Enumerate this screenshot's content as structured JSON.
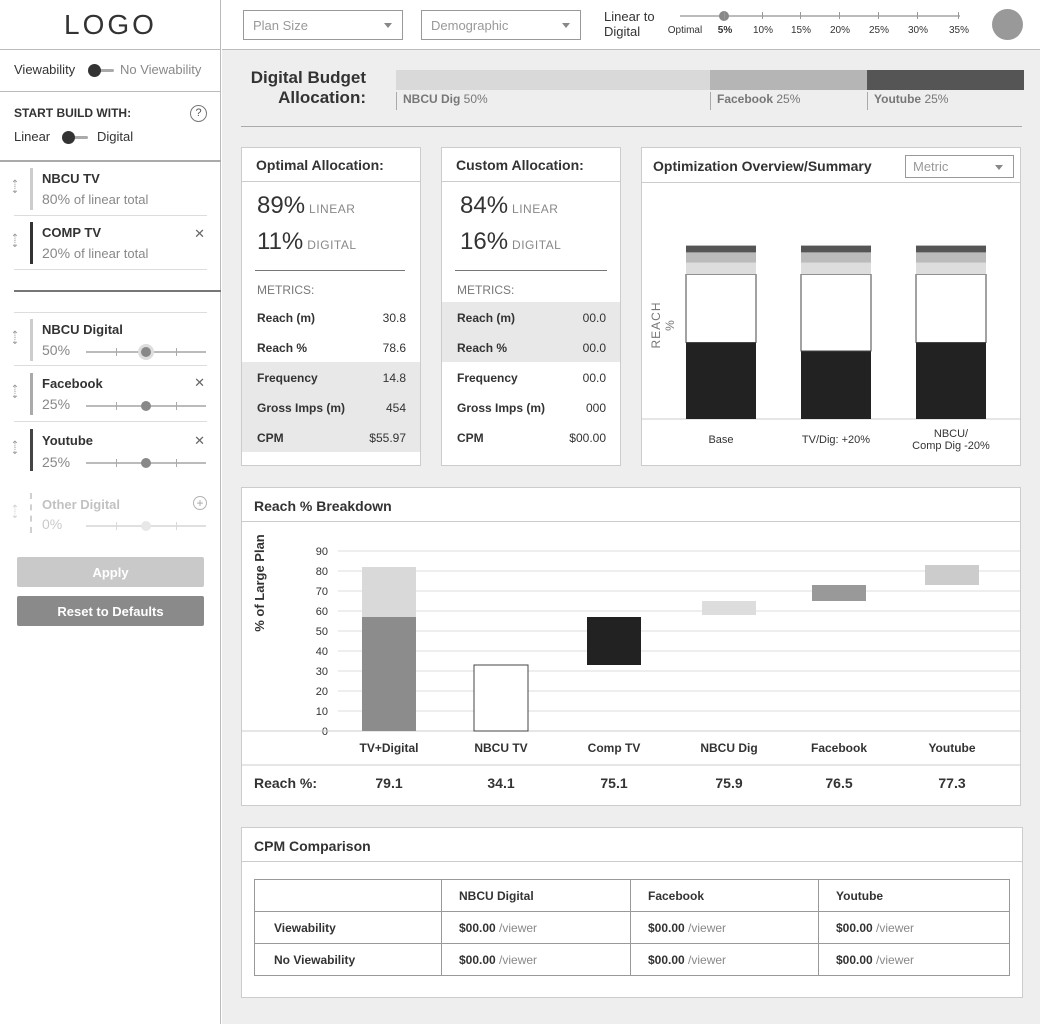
{
  "header": {
    "logo": "LOGO",
    "plan_size_placeholder": "Plan Size",
    "demographic_placeholder": "Demographic",
    "linear_to_digital_label": "Linear to\nDigital",
    "slider_ticks": [
      "Optimal",
      "5%",
      "10%",
      "15%",
      "20%",
      "25%",
      "30%",
      "35%"
    ],
    "slider_selected": "5%"
  },
  "sidebar": {
    "viewability_label": "Viewability",
    "no_viewability_label": "No Viewability",
    "start_build_label": "START BUILD WITH:",
    "help_icon": "?",
    "linear_label": "Linear",
    "digital_label": "Digital",
    "linear_items": [
      {
        "name": "NBCU TV",
        "pct": "80%",
        "sub": "of linear total"
      },
      {
        "name": "COMP TV",
        "pct": "20%",
        "sub": "of linear total",
        "removable": true
      }
    ],
    "digital_items": [
      {
        "name": "NBCU Digital",
        "pct": "50%",
        "slider_value": 0.5
      },
      {
        "name": "Facebook",
        "pct": "25%",
        "slider_value": 0.5,
        "removable": true
      },
      {
        "name": "Youtube",
        "pct": "25%",
        "slider_value": 0.5,
        "removable": true
      },
      {
        "name": "Other Digital",
        "pct": "0%",
        "slider_value": 0.5,
        "disabled": true
      }
    ],
    "apply_label": "Apply",
    "reset_label": "Reset to Defaults"
  },
  "budget": {
    "title_line1": "Digital Budget",
    "title_line2": "Allocation:",
    "segments": [
      {
        "name": "NBCU Dig",
        "pct": "50%",
        "share": 0.5,
        "color": "#d9d9d9"
      },
      {
        "name": "Facebook",
        "pct": "25%",
        "share": 0.25,
        "color": "#b5b5b5"
      },
      {
        "name": "Youtube",
        "pct": "25%",
        "share": 0.25,
        "color": "#555555"
      }
    ]
  },
  "optimal": {
    "title": "Optimal Allocation:",
    "linear_pct": "89%",
    "linear_label": "LINEAR",
    "digital_pct": "11%",
    "digital_label": "DIGITAL",
    "metrics_label": "METRICS:",
    "rows": [
      {
        "label": "Reach (m)",
        "value": "30.8",
        "shaded": false
      },
      {
        "label": "Reach %",
        "value": "78.6",
        "shaded": false
      },
      {
        "label": "Frequency",
        "value": "14.8",
        "shaded": true
      },
      {
        "label": "Gross Imps (m)",
        "value": "454",
        "shaded": true
      },
      {
        "label": "CPM",
        "value": "$55.97",
        "shaded": true
      }
    ]
  },
  "custom": {
    "title": "Custom Allocation:",
    "linear_pct": "84%",
    "linear_label": "LINEAR",
    "digital_pct": "16%",
    "digital_label": "DIGITAL",
    "metrics_label": "METRICS:",
    "rows": [
      {
        "label": "Reach (m)",
        "value": "00.0",
        "shaded": true
      },
      {
        "label": "Reach %",
        "value": "00.0",
        "shaded": true
      },
      {
        "label": "Frequency",
        "value": "00.0",
        "shaded": false
      },
      {
        "label": "Gross Imps (m)",
        "value": "000",
        "shaded": false
      },
      {
        "label": "CPM",
        "value": "$00.00",
        "shaded": false
      }
    ]
  },
  "overview": {
    "title": "Optimization Overview/Summary",
    "metric_placeholder": "Metric",
    "ylabel": "REACH %",
    "bars": [
      {
        "label": "Base",
        "segments": [
          0.45,
          0.4,
          0.07,
          0.06,
          0.04
        ]
      },
      {
        "label": "TV/Dig: +20%",
        "segments": [
          0.4,
          0.45,
          0.07,
          0.06,
          0.04
        ]
      },
      {
        "label": "NBCU/\nComp Dig -20%",
        "segments": [
          0.45,
          0.4,
          0.07,
          0.06,
          0.04
        ]
      }
    ],
    "segment_colors": [
      "#222222",
      "#ffffff",
      "#dddddd",
      "#bbbbbb",
      "#555555"
    ]
  },
  "chart_data": {
    "type": "bar",
    "title": "Reach % Breakdown",
    "ylabel": "% of Large Plan",
    "ylim": [
      0,
      90
    ],
    "yticks": [
      0,
      10,
      20,
      30,
      40,
      50,
      60,
      70,
      80,
      90
    ],
    "categories": [
      "TV+Digital",
      "NBCU TV",
      "Comp TV",
      "NBCU Dig",
      "Facebook",
      "Youtube"
    ],
    "bars": [
      {
        "category": "TV+Digital",
        "base": 0,
        "top": 57,
        "color": "#8c8c8c"
      },
      {
        "category": "TV+Digital",
        "base": 57,
        "top": 82,
        "color": "#d9d9d9"
      },
      {
        "category": "NBCU TV",
        "base": 0,
        "top": 33,
        "color": "#ffffff"
      },
      {
        "category": "Comp TV",
        "base": 33,
        "top": 57,
        "color": "#222222"
      },
      {
        "category": "NBCU Dig",
        "base": 58,
        "top": 65,
        "color": "#dddddd"
      },
      {
        "category": "Facebook",
        "base": 65,
        "top": 73,
        "color": "#999999"
      },
      {
        "category": "Youtube",
        "base": 73,
        "top": 83,
        "color": "#cccccc"
      }
    ],
    "reach_label": "Reach %:",
    "reach_values": [
      "79.1",
      "34.1",
      "75.1",
      "75.9",
      "76.5",
      "77.3"
    ]
  },
  "cpm": {
    "title": "CPM Comparison",
    "columns": [
      "",
      "NBCU Digital",
      "Facebook",
      "Youtube"
    ],
    "rows": [
      {
        "label": "Viewability",
        "cells": [
          "$00.00",
          "$00.00",
          "$00.00"
        ]
      },
      {
        "label": "No Viewability",
        "cells": [
          "$00.00",
          "$00.00",
          "$00.00"
        ]
      }
    ],
    "unit": "/viewer"
  }
}
